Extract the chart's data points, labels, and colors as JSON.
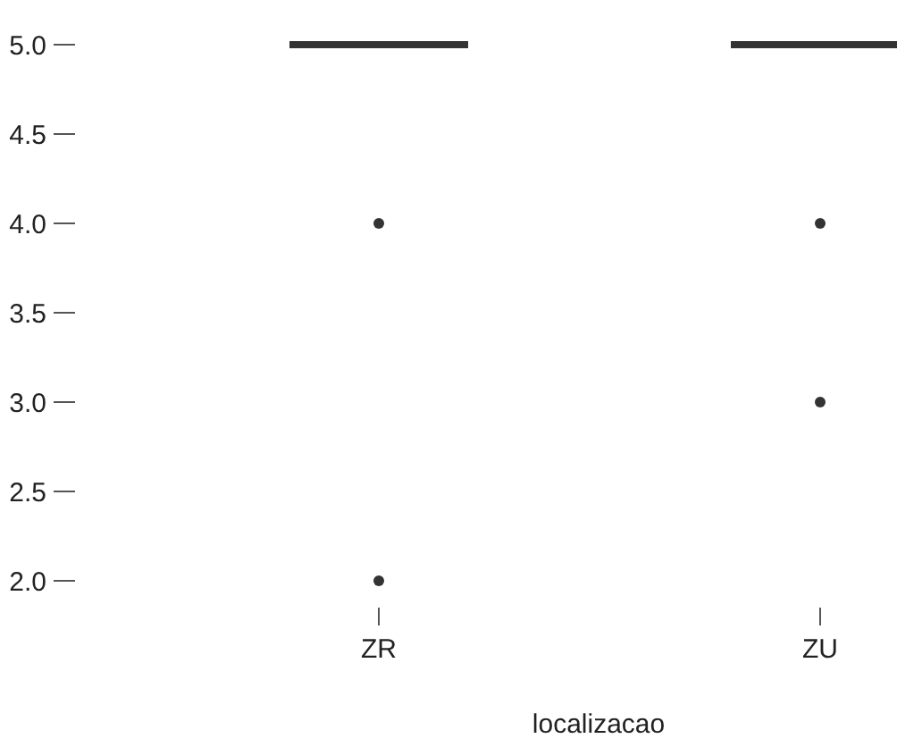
{
  "chart_data": {
    "type": "box",
    "xlabel": "localizacao",
    "categories": [
      "ZR",
      "ZU"
    ],
    "boxes": [
      {
        "low": 5,
        "q1": 5,
        "median": 5,
        "q3": 5,
        "high": 5,
        "outliers": [
          4,
          2
        ]
      },
      {
        "low": 5,
        "q1": 5,
        "median": 5,
        "q3": 5,
        "high": 5,
        "outliers": [
          4,
          3
        ]
      }
    ],
    "ylim": [
      2,
      5
    ],
    "yticks": [
      {
        "value": 2,
        "label": "2.0"
      },
      {
        "value": 2.5,
        "label": "2.5"
      },
      {
        "value": 3,
        "label": "3.0"
      },
      {
        "value": 3.5,
        "label": "3.5"
      },
      {
        "value": 4,
        "label": "4.0"
      },
      {
        "value": 4.5,
        "label": "4.5"
      },
      {
        "value": 5,
        "label": "5.0"
      }
    ],
    "color": "#333333",
    "grid": false
  }
}
